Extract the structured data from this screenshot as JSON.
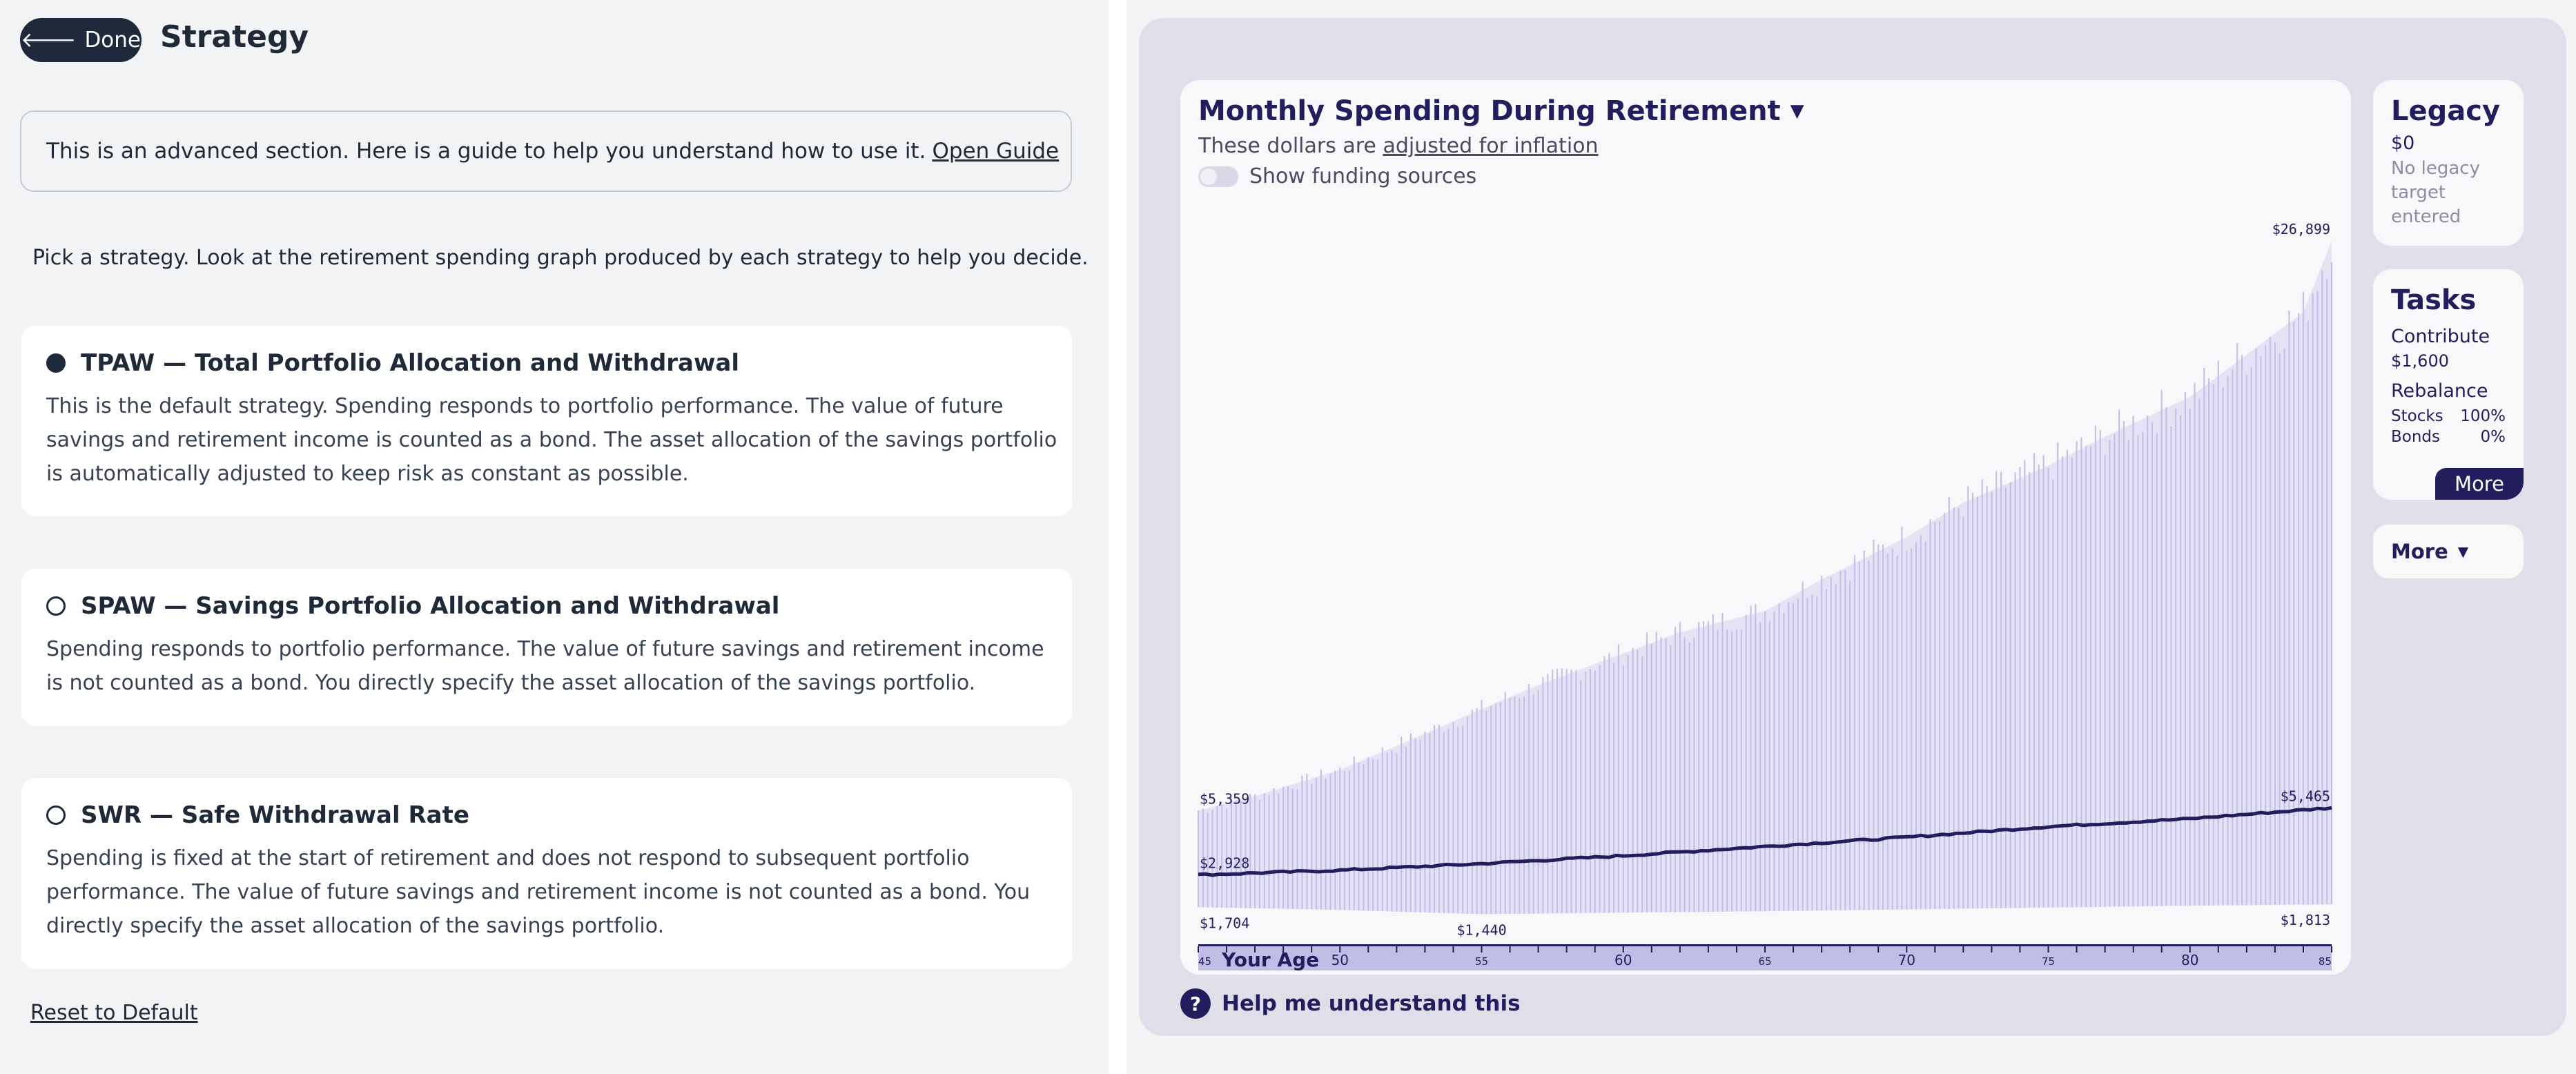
{
  "header": {
    "done_label": "Done",
    "title": "Strategy"
  },
  "guide": {
    "text": "This is an advanced section. Here is a guide to help you understand how to use it.",
    "link": "Open Guide"
  },
  "intro": "Pick a strategy. Look at the retirement spending graph produced by each strategy to help you decide.",
  "strategies": [
    {
      "title": "TPAW — Total Portfolio Allocation and Withdrawal",
      "description": "This is the default strategy. Spending responds to portfolio performance. The value of future savings and retirement income is counted as a bond. The asset allocation of the savings portfolio is automatically adjusted to keep risk as constant as possible.",
      "selected": true
    },
    {
      "title": "SPAW — Savings Portfolio Allocation and Withdrawal",
      "description": "Spending responds to portfolio performance. The value of future savings and retirement income is not counted as a bond. You directly specify the asset allocation of the savings portfolio.",
      "selected": false
    },
    {
      "title": "SWR — Safe Withdrawal Rate",
      "description": "Spending is fixed at the start of retirement and does not respond to subsequent portfolio performance. The value of future savings and retirement income is not counted as a bond. You directly specify the asset allocation of the savings portfolio.",
      "selected": false
    }
  ],
  "reset_label": "Reset to Default",
  "chart_panel": {
    "title": "Monthly Spending During Retirement",
    "subtitle_prefix": "These dollars are",
    "subtitle_link": "adjusted for inflation",
    "toggle_label": "Show funding sources",
    "toggle_on": false,
    "axis_label": "Your Age"
  },
  "legacy": {
    "title": "Legacy",
    "value": "$0",
    "note": "No legacy target entered"
  },
  "tasks": {
    "title": "Tasks",
    "contribute_label": "Contribute",
    "contribute_amount": "$1,600",
    "rebalance_label": "Rebalance",
    "stocks_label": "Stocks",
    "stocks_value": "100%",
    "bonds_label": "Bonds",
    "bonds_value": "0%",
    "more_label": "More"
  },
  "more_menu_label": "More",
  "help_label": "Help me understand this",
  "colors": {
    "accent": "#221d5c",
    "band": "#c9c6ea",
    "dark_button": "#1e293b"
  },
  "chart_data": {
    "type": "area",
    "x_label": "Your Age",
    "x_range": [
      45,
      85
    ],
    "x_ticks": [
      45,
      50,
      55,
      60,
      65,
      70,
      75,
      80,
      85
    ],
    "y_range": [
      1400,
      27500
    ],
    "upper_series": {
      "ages": [
        45,
        47,
        50,
        52,
        55,
        57,
        60,
        62,
        65,
        67,
        70,
        72,
        75,
        77,
        80,
        82,
        84,
        85
      ],
      "values": [
        5359,
        5900,
        6900,
        7800,
        9200,
        10100,
        11300,
        12100,
        12900,
        14100,
        15700,
        17000,
        18400,
        19500,
        21000,
        22600,
        24200,
        26899
      ]
    },
    "median_series": {
      "ages": [
        45,
        50,
        55,
        60,
        65,
        70,
        75,
        80,
        85
      ],
      "values": [
        2928,
        3100,
        3350,
        3650,
        4000,
        4350,
        4750,
        5050,
        5465
      ]
    },
    "lower_series": {
      "ages": [
        45,
        50,
        55,
        60,
        65,
        70,
        75,
        80,
        85
      ],
      "values": [
        1704,
        1600,
        1440,
        1500,
        1550,
        1620,
        1690,
        1760,
        1813
      ]
    },
    "annotations": [
      {
        "label": "$26,899",
        "age": 85,
        "value": 26899,
        "anchor": "end"
      },
      {
        "label": "$5,359",
        "age": 45,
        "value": 5359,
        "anchor": "start"
      },
      {
        "label": "$5,465",
        "age": 85,
        "value": 5465,
        "anchor": "end"
      },
      {
        "label": "$2,928",
        "age": 45,
        "value": 2928,
        "anchor": "start"
      },
      {
        "label": "$1,704",
        "age": 45,
        "value": 1704,
        "anchor": "start"
      },
      {
        "label": "$1,440",
        "age": 55,
        "value": 1440,
        "anchor": "middle"
      },
      {
        "label": "$1,813",
        "age": 85,
        "value": 1813,
        "anchor": "end"
      }
    ]
  }
}
